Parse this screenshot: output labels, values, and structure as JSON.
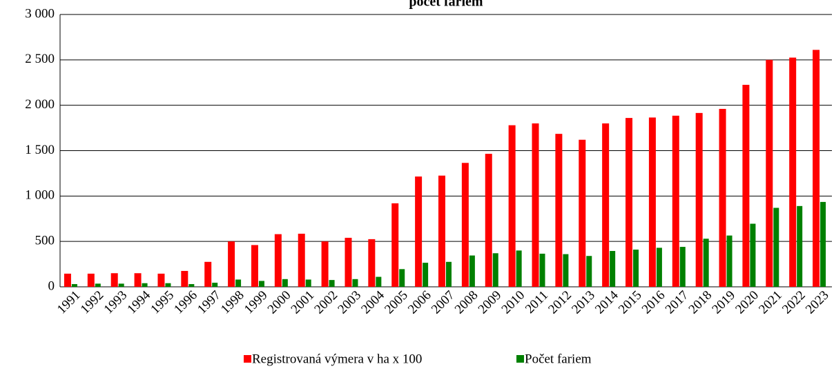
{
  "chart_data": {
    "type": "bar",
    "title": "počet fariem",
    "categories": [
      "1991",
      "1992",
      "1993",
      "1994",
      "1995",
      "1996",
      "1997",
      "1998",
      "1999",
      "2000",
      "2001",
      "2002",
      "2003",
      "2004",
      "2005",
      "2006",
      "2007",
      "2008",
      "2009",
      "2010",
      "2011",
      "2012",
      "2013",
      "2014",
      "2015",
      "2016",
      "2017",
      "2018",
      "2019",
      "2020",
      "2021",
      "2022",
      "2023"
    ],
    "series": [
      {
        "name": "Registrovaná výmera v ha x 100",
        "color": "#ff0000",
        "values": [
          145,
          145,
          150,
          150,
          145,
          175,
          275,
          500,
          460,
          580,
          585,
          500,
          540,
          525,
          920,
          1215,
          1225,
          1365,
          1465,
          1780,
          1800,
          1685,
          1620,
          1800,
          1860,
          1865,
          1885,
          1915,
          1960,
          2225,
          2500,
          2525,
          2610
        ]
      },
      {
        "name": "Počet fariem",
        "color": "#008000",
        "values": [
          30,
          35,
          35,
          40,
          40,
          30,
          45,
          80,
          65,
          85,
          80,
          75,
          85,
          110,
          195,
          265,
          275,
          345,
          370,
          400,
          365,
          360,
          340,
          395,
          410,
          430,
          440,
          530,
          565,
          695,
          870,
          890,
          935
        ]
      }
    ],
    "ylim": [
      0,
      3000
    ],
    "yticks": [
      0,
      500,
      {
        "value": 1000,
        "label": "1 000"
      },
      {
        "value": 1500,
        "label": "1 500"
      },
      {
        "value": 2000,
        "label": "2 000"
      },
      {
        "value": 2500,
        "label": "2 500"
      },
      {
        "value": 3000,
        "label": "3 000"
      }
    ],
    "grid": true,
    "legend": "bottom"
  }
}
